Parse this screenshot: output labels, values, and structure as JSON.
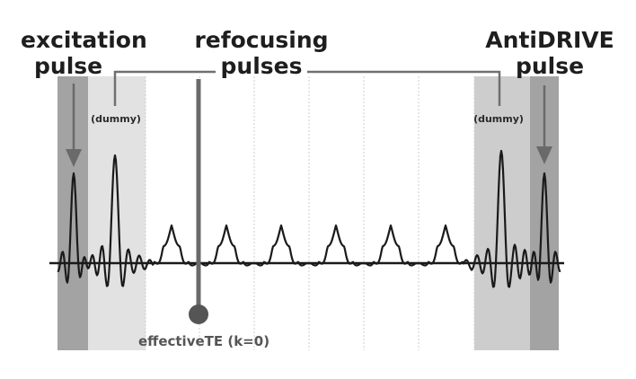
{
  "labels": {
    "excitation_line1": "excitation",
    "excitation_line2": "pulse",
    "refocusing_line1": "refocusing",
    "refocusing_line2": "pulses",
    "antidrive_line1": "AntiDRIVE",
    "antidrive_line2": "pulse",
    "dummy_left": "(dummy)",
    "dummy_right": "(dummy)",
    "effective_te": "effectiveTE (k=0)"
  },
  "colors": {
    "excitation_band": "#a3a3a3",
    "dummy_band_left": "#e2e2e2",
    "dummy_band_right": "#cdcdcd",
    "antidrive_band": "#a3a3a3",
    "signal": "#1a1a1a",
    "bracket": "#707070",
    "te_marker": "#6a6a6a",
    "arrow": "#6a6a6a",
    "grid": "#cfcfcf"
  },
  "refocusing_echo_count": 6
}
